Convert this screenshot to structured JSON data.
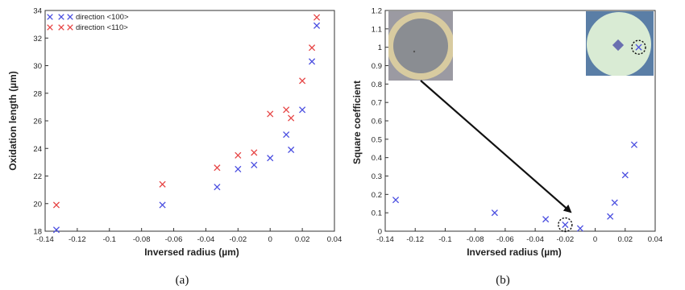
{
  "colors": {
    "series_100": "#4a4ee0",
    "series_110": "#e64545",
    "axis": "#333333",
    "inset_left_bg": "#9b9aa2",
    "inset_left_ring": "#d8cba0",
    "inset_left_disc": "#8a8d92",
    "inset_right_bg": "#5a7ea6",
    "inset_right_disc": "#d9ebd4",
    "inset_right_square": "#6a6fb0"
  },
  "chart_data": [
    {
      "type": "scatter",
      "panel_caption": "(a)",
      "xlabel": "Inversed radius (µm)",
      "ylabel": "Oxidation length (µm)",
      "xlim": [
        -0.14,
        0.04
      ],
      "ylim": [
        18,
        34
      ],
      "x_ticks": [
        "-0.14",
        "-0.12",
        "-0.1",
        "-0.08",
        "-0.06",
        "-0.04",
        "-0.02",
        "0",
        "0.02",
        "0.04"
      ],
      "y_ticks": [
        "18",
        "20",
        "22",
        "24",
        "26",
        "28",
        "30",
        "32",
        "34"
      ],
      "legend_position": "top-left",
      "series": [
        {
          "name": "direction <100>",
          "color": "#4a4ee0",
          "x": [
            -0.133,
            -0.067,
            -0.033,
            -0.02,
            -0.01,
            0.0,
            0.01,
            0.013,
            0.02,
            0.026,
            0.029
          ],
          "y": [
            18.1,
            19.9,
            21.2,
            22.5,
            22.8,
            23.3,
            25.0,
            23.9,
            26.8,
            30.3,
            32.9
          ]
        },
        {
          "name": "direction <110>",
          "color": "#e64545",
          "x": [
            -0.133,
            -0.067,
            -0.033,
            -0.02,
            -0.01,
            0.0,
            0.01,
            0.013,
            0.02,
            0.026,
            0.029
          ],
          "y": [
            19.9,
            21.4,
            22.6,
            23.5,
            23.7,
            26.5,
            26.8,
            26.2,
            28.9,
            31.3,
            33.5
          ]
        }
      ]
    },
    {
      "type": "scatter",
      "panel_caption": "(b)",
      "xlabel": "Inversed radius (µm)",
      "ylabel": "Square coefficient",
      "xlim": [
        -0.14,
        0.04
      ],
      "ylim": [
        0,
        1.2
      ],
      "x_ticks": [
        "-0.14",
        "-0.12",
        "-0.1",
        "-0.08",
        "-0.06",
        "-0.04",
        "-0.02",
        "0",
        "0.02",
        "0.04"
      ],
      "y_ticks": [
        "0",
        "0.1",
        "0.2",
        "0.3",
        "0.4",
        "0.5",
        "0.6",
        "0.7",
        "0.8",
        "0.9",
        "1",
        "1.1",
        "1.2"
      ],
      "series": [
        {
          "color": "#4a4ee0",
          "x": [
            -0.133,
            -0.067,
            -0.033,
            -0.02,
            -0.01,
            0.01,
            0.013,
            0.02,
            0.026,
            0.029
          ],
          "y": [
            0.17,
            0.1,
            0.065,
            0.035,
            0.015,
            0.08,
            0.155,
            0.305,
            0.47,
            1.0
          ]
        }
      ],
      "highlighted_points": [
        {
          "x": -0.02,
          "y": 0.035
        },
        {
          "x": 0.029,
          "y": 1.0
        }
      ],
      "insets": [
        {
          "description_icon": "wafer-ring-photo"
        },
        {
          "description_icon": "wafer-square-photo"
        }
      ]
    }
  ]
}
